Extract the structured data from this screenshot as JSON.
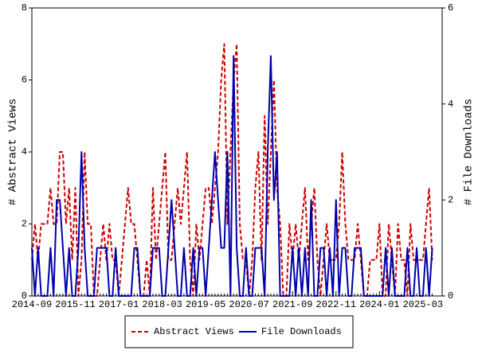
{
  "chart_data": {
    "type": "line",
    "categories": [
      "2014-09",
      null,
      null,
      null,
      null,
      null,
      null,
      null,
      null,
      null,
      null,
      null,
      null,
      null,
      "2015-11",
      null,
      null,
      null,
      null,
      null,
      null,
      null,
      null,
      null,
      null,
      null,
      null,
      null,
      "2017-01",
      null,
      null,
      null,
      null,
      null,
      null,
      null,
      null,
      null,
      null,
      null,
      null,
      null,
      "2018-03",
      null,
      null,
      null,
      null,
      null,
      null,
      null,
      null,
      null,
      null,
      null,
      null,
      null,
      "2019-05",
      null,
      null,
      null,
      null,
      null,
      null,
      null,
      null,
      null,
      null,
      null,
      null,
      null,
      "2020-07",
      null,
      null,
      null,
      null,
      null,
      null,
      null,
      null,
      null,
      null,
      null,
      null,
      null,
      "2021-09",
      null,
      null,
      null,
      null,
      null,
      null,
      null,
      null,
      null,
      null,
      null,
      null,
      null,
      "2022-11",
      null,
      null,
      null,
      null,
      null,
      null,
      null,
      null,
      null,
      null,
      null,
      null,
      null,
      "2024-01",
      null,
      null,
      null,
      null,
      null,
      null,
      null,
      null,
      null,
      null,
      null,
      null,
      null,
      "2025-03",
      null,
      null,
      null
    ],
    "y_label": "# Abstract Views",
    "y2_label": "# File Downloads",
    "ylim": [
      0,
      8
    ],
    "yticks": [
      0,
      2,
      4,
      6,
      8
    ],
    "y2lim": [
      0,
      6
    ],
    "y2ticks": [
      0,
      2,
      4,
      6
    ],
    "series": [
      {
        "name": "Abstract Views",
        "color": "#cc0000",
        "dash": true,
        "values": [
          1,
          2,
          1,
          2,
          2,
          2,
          3,
          2,
          2,
          4,
          4,
          2,
          3,
          1,
          3,
          0,
          1,
          4,
          2,
          2,
          0,
          0,
          1,
          2,
          1,
          2,
          1,
          1,
          0,
          1,
          2,
          3,
          2,
          2,
          1,
          0,
          0,
          1,
          0,
          3,
          1,
          2,
          3,
          4,
          1,
          1,
          2,
          3,
          2,
          3,
          4,
          1,
          0,
          2,
          1,
          2,
          3,
          3,
          2,
          3,
          4,
          6,
          7,
          2,
          4,
          6,
          7,
          2,
          1,
          1,
          0,
          1,
          3,
          4,
          1,
          5,
          2,
          4,
          6,
          3,
          2,
          0,
          0,
          2,
          1,
          2,
          1,
          2,
          3,
          1,
          2,
          3,
          1,
          0,
          1,
          2,
          1,
          1,
          1,
          2,
          4,
          2,
          1,
          1,
          1,
          2,
          1,
          0,
          0,
          1,
          1,
          1,
          2,
          0,
          0,
          2,
          1,
          0,
          2,
          1,
          1,
          0,
          2,
          1,
          1,
          1,
          1,
          2,
          3,
          1
        ]
      },
      {
        "name": "File Downloads",
        "color": "#0000aa",
        "axis": "y2",
        "dash": false,
        "values": [
          1,
          0,
          1,
          0,
          0,
          0,
          1,
          0,
          2,
          2,
          1,
          0,
          1,
          0,
          0,
          1,
          3,
          1,
          0,
          0,
          0,
          1,
          1,
          1,
          1,
          0,
          0,
          1,
          0,
          0,
          0,
          0,
          0,
          1,
          1,
          0,
          0,
          0,
          0,
          1,
          1,
          1,
          0,
          0,
          1,
          2,
          1,
          0,
          0,
          1,
          0,
          0,
          1,
          0,
          1,
          1,
          0,
          1,
          2,
          3,
          2,
          1,
          1,
          3,
          0,
          5,
          1,
          0,
          0,
          1,
          0,
          0,
          1,
          1,
          1,
          0,
          3,
          5,
          2,
          3,
          0,
          0,
          0,
          0,
          1,
          0,
          1,
          0,
          1,
          0,
          2,
          0,
          0,
          1,
          1,
          0,
          1,
          0,
          2,
          0,
          1,
          1,
          0,
          0,
          1,
          1,
          1,
          0,
          0,
          0,
          0,
          0,
          0,
          0,
          1,
          0,
          1,
          0,
          0,
          0,
          0,
          1,
          0,
          0,
          1,
          0,
          0,
          1,
          0,
          1
        ]
      }
    ]
  }
}
